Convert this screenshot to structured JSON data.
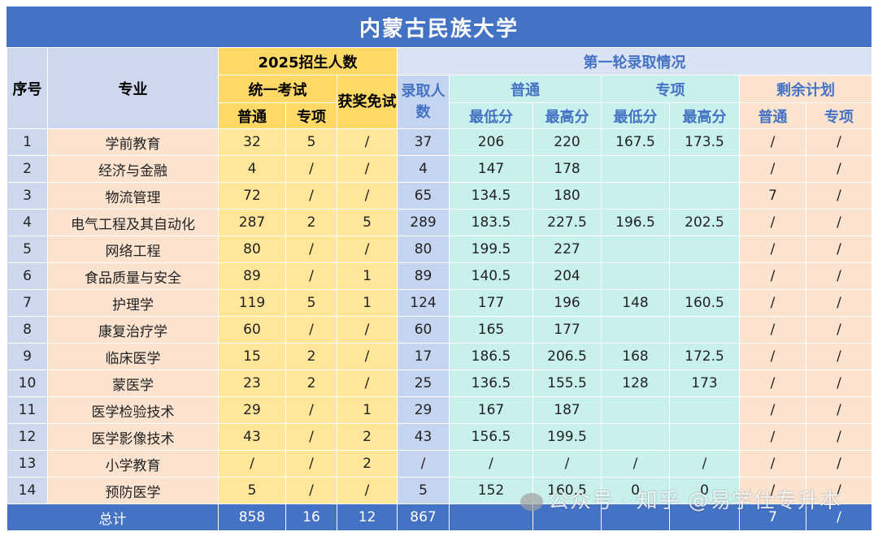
{
  "title": "内蒙古民族大学",
  "headers": {
    "seq": "序号",
    "major": "专业",
    "plan_group": "2025招生人数",
    "unified_exam": "统一考试",
    "award_exempt": "获奖免试",
    "first_round": "第一轮录取情况",
    "admitted": "录取人数",
    "general": "普通",
    "special": "专项",
    "min_score": "最低分",
    "max_score": "最高分",
    "remaining": "剩余计划"
  },
  "rows": [
    {
      "seq": "1",
      "major": "学前教育",
      "plan_general": "32",
      "plan_special": "5",
      "award": "/",
      "admitted": "37",
      "gen_min": "206",
      "gen_max": "220",
      "spec_min": "167.5",
      "spec_max": "173.5",
      "rem_general": "/",
      "rem_special": "/"
    },
    {
      "seq": "2",
      "major": "经济与金融",
      "plan_general": "4",
      "plan_special": "/",
      "award": "/",
      "admitted": "4",
      "gen_min": "147",
      "gen_max": "178",
      "spec_min": "",
      "spec_max": "",
      "rem_general": "/",
      "rem_special": "/"
    },
    {
      "seq": "3",
      "major": "物流管理",
      "plan_general": "72",
      "plan_special": "/",
      "award": "/",
      "admitted": "65",
      "gen_min": "134.5",
      "gen_max": "180",
      "spec_min": "",
      "spec_max": "",
      "rem_general": "7",
      "rem_special": "/"
    },
    {
      "seq": "4",
      "major": "电气工程及其自动化",
      "plan_general": "287",
      "plan_special": "2",
      "award": "5",
      "admitted": "289",
      "gen_min": "183.5",
      "gen_max": "227.5",
      "spec_min": "196.5",
      "spec_max": "202.5",
      "rem_general": "/",
      "rem_special": "/"
    },
    {
      "seq": "5",
      "major": "网络工程",
      "plan_general": "80",
      "plan_special": "/",
      "award": "/",
      "admitted": "80",
      "gen_min": "199.5",
      "gen_max": "227",
      "spec_min": "",
      "spec_max": "",
      "rem_general": "/",
      "rem_special": "/"
    },
    {
      "seq": "6",
      "major": "食品质量与安全",
      "plan_general": "89",
      "plan_special": "/",
      "award": "1",
      "admitted": "89",
      "gen_min": "140.5",
      "gen_max": "204",
      "spec_min": "",
      "spec_max": "",
      "rem_general": "/",
      "rem_special": "/"
    },
    {
      "seq": "7",
      "major": "护理学",
      "plan_general": "119",
      "plan_special": "5",
      "award": "1",
      "admitted": "124",
      "gen_min": "177",
      "gen_max": "196",
      "spec_min": "148",
      "spec_max": "160.5",
      "rem_general": "/",
      "rem_special": "/"
    },
    {
      "seq": "8",
      "major": "康复治疗学",
      "plan_general": "60",
      "plan_special": "/",
      "award": "/",
      "admitted": "60",
      "gen_min": "165",
      "gen_max": "177",
      "spec_min": "",
      "spec_max": "",
      "rem_general": "/",
      "rem_special": "/"
    },
    {
      "seq": "9",
      "major": "临床医学",
      "plan_general": "15",
      "plan_special": "2",
      "award": "/",
      "admitted": "17",
      "gen_min": "186.5",
      "gen_max": "206.5",
      "spec_min": "168",
      "spec_max": "172.5",
      "rem_general": "/",
      "rem_special": "/"
    },
    {
      "seq": "10",
      "major": "蒙医学",
      "plan_general": "23",
      "plan_special": "2",
      "award": "/",
      "admitted": "25",
      "gen_min": "136.5",
      "gen_max": "155.5",
      "spec_min": "128",
      "spec_max": "173",
      "rem_general": "/",
      "rem_special": "/"
    },
    {
      "seq": "11",
      "major": "医学检验技术",
      "plan_general": "29",
      "plan_special": "/",
      "award": "1",
      "admitted": "29",
      "gen_min": "167",
      "gen_max": "187",
      "spec_min": "",
      "spec_max": "",
      "rem_general": "/",
      "rem_special": "/"
    },
    {
      "seq": "12",
      "major": "医学影像技术",
      "plan_general": "43",
      "plan_special": "/",
      "award": "2",
      "admitted": "43",
      "gen_min": "156.5",
      "gen_max": "199.5",
      "spec_min": "",
      "spec_max": "",
      "rem_general": "/",
      "rem_special": "/"
    },
    {
      "seq": "13",
      "major": "小学教育",
      "plan_general": "/",
      "plan_special": "/",
      "award": "2",
      "admitted": "/",
      "gen_min": "/",
      "gen_max": "/",
      "spec_min": "/",
      "spec_max": "/",
      "rem_general": "/",
      "rem_special": "/"
    },
    {
      "seq": "14",
      "major": "预防医学",
      "plan_general": "5",
      "plan_special": "/",
      "award": "/",
      "admitted": "5",
      "gen_min": "152",
      "gen_max": "160.5",
      "spec_min": "0",
      "spec_max": "0",
      "rem_general": "/",
      "rem_special": "/"
    }
  ],
  "total": {
    "label": "总计",
    "plan_general": "858",
    "plan_special": "16",
    "award": "12",
    "admitted": "867",
    "gen_min": "",
    "gen_max": "",
    "spec_min": "",
    "spec_max": "",
    "rem_general": "7",
    "rem_special": "/"
  },
  "watermark": "公众号 · 知乎 @易学仕专升本"
}
